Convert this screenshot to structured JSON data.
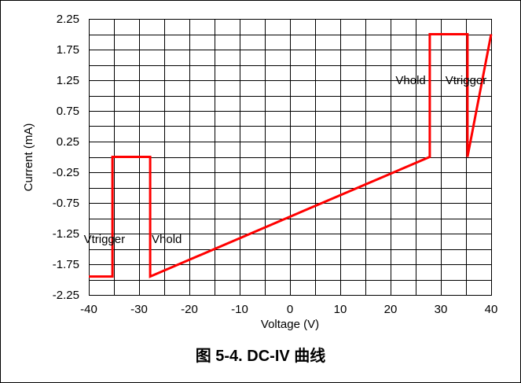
{
  "figure": {
    "caption": "图 5-4. DC-IV 曲线"
  },
  "chart_data": {
    "type": "line",
    "xlabel": "Voltage (V)",
    "ylabel": "Current (mA)",
    "xlim": [
      -40,
      40
    ],
    "ylim": [
      -2.25,
      2.25
    ],
    "x_ticks": [
      -40,
      -30,
      -20,
      -10,
      0,
      10,
      20,
      30,
      40
    ],
    "x_tick_labels": [
      "-40",
      "-30",
      "-20",
      "-10",
      "0",
      "10",
      "20",
      "30",
      "40"
    ],
    "y_ticks": [
      2.25,
      1.75,
      1.25,
      0.75,
      0.25,
      -0.25,
      -0.75,
      -1.25,
      -1.75,
      -2.25
    ],
    "y_tick_labels": [
      "2.25",
      "1.75",
      "1.25",
      "0.75",
      "0.25",
      "-0.25",
      "-0.75",
      "-1.25",
      "-1.75",
      "-2.25"
    ],
    "grid": true,
    "grid_minor_x_step": 5,
    "grid_minor_y_step": 0.25,
    "line_color": "#ff0000",
    "series": [
      {
        "x": [
          -40,
          -35.3,
          -35.3,
          -27.8,
          -27.8,
          27.8,
          27.8,
          35.3,
          35.3,
          40
        ],
        "y": [
          -1.95,
          -1.95,
          0.0,
          0.0,
          -1.95,
          0.0,
          2.0,
          2.0,
          0.0,
          2.0
        ]
      }
    ],
    "annotations": [
      {
        "text": "Vtrigger",
        "x": -36.9,
        "y": -1.34
      },
      {
        "text": "Vhold",
        "x": -24.5,
        "y": -1.34
      },
      {
        "text": "Vhold",
        "x": 24.0,
        "y": 1.25
      },
      {
        "text": "Vtrigger",
        "x": 35.0,
        "y": 1.25
      }
    ]
  }
}
